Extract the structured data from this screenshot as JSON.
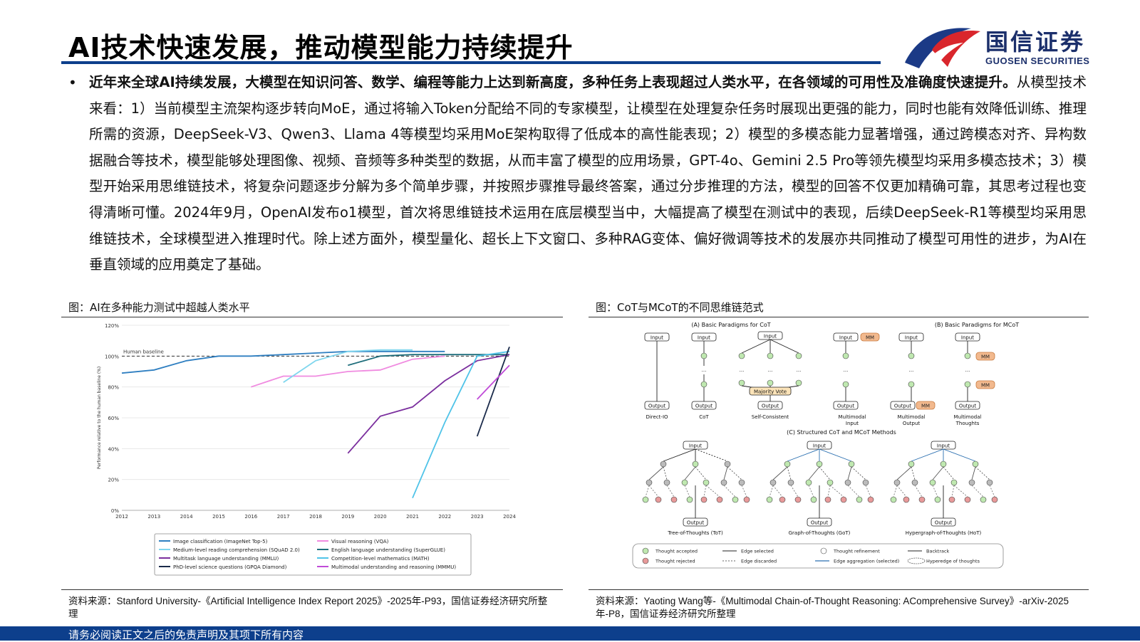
{
  "page": {
    "title": "AI技术快速发展，推动模型能力持续提升",
    "logo": {
      "cn": "国信证券",
      "en": "GUOSEN SECURITIES"
    },
    "bullet": "•",
    "paragraph_bold": "近年来全球AI持续发展，大模型在知识问答、数学、编程等能力上达到新高度，多种任务上表现超过人类水平，在各领域的可用性及准确度快速提升。",
    "paragraph_rest": "从模型技术来看：1）当前模型主流架构逐步转向MoE，通过将输入Token分配给不同的专家模型，让模型在处理复杂任务时展现出更强的能力，同时也能有效降低训练、推理所需的资源，DeepSeek-V3、Qwen3、Llama 4等模型均采用MoE架构取得了低成本的高性能表现；2）模型的多模态能力显著增强，通过跨模态对齐、异构数据融合等技术，模型能够处理图像、视频、音频等多种类型的数据，从而丰富了模型的应用场景，GPT-4o、Gemini 2.5 Pro等领先模型均采用多模态技术；3）模型开始采用思维链技术，将复杂问题逐步分解为多个简单步骤，并按照步骤推导最终答案，通过分步推理的方法，模型的回答不仅更加精确可靠，其思考过程也变得清晰可懂。2024年9月，OpenAI发布o1模型，首次将思维链技术运用在底层模型当中，大幅提高了模型在测试中的表现，后续DeepSeek-R1等模型均采用思维链技术，全球模型进入推理时代。除上述方面外，模型量化、超长上下文窗口、多种RAG变体、偏好微调等技术的发展亦共同推动了模型可用性的进步，为AI在垂直领域的应用奠定了基础。",
    "footer": "请务必阅读正文之后的免责声明及其项下所有内容"
  },
  "left_figure": {
    "caption": "图：AI在多种能力测试中超越人类水平",
    "source": "资料来源：Stanford University-《Artificial Intelligence Index Report 2025》-2025年-P93，国信证券经济研究所整理"
  },
  "right_figure": {
    "caption": "图：CoT与MCoT的不同思维链范式",
    "source": "资料来源：Yaoting Wang等-《Multimodal Chain-of-Thought Reasoning: AComprehensive Survey》-arXiv-2025年-P8，国信证券经济研究所整理",
    "section_a": "(A) Basic Paradigms for CoT",
    "section_b": "(B) Basic Paradigms for MCoT",
    "section_c": "(C) Structured CoT and MCoT Methods",
    "input": "Input",
    "output": "Output",
    "mm": "MM",
    "majority_vote": "Majority Vote",
    "a_labels": [
      "Direct-IO",
      "CoT",
      "Self-Consistent"
    ],
    "b_labels": [
      "Multimodal Input",
      "Multimodal Output",
      "Multimodal Thoughts"
    ],
    "c_labels": [
      "Tree-of-Thoughts (ToT)",
      "Graph-of-Thoughts (GoT)",
      "Hypergraph-of-Thoughts (HoT)"
    ],
    "legend": [
      "Thought accepted",
      "Thought rejected",
      "Edge selected",
      "Edge discarded",
      "Thought refinement",
      "Edge aggregation (selected)",
      "Backtrack",
      "Hyperedge of thoughts"
    ]
  },
  "chart_data": {
    "type": "line",
    "title": "",
    "xlabel": "",
    "ylabel": "Performance relative to the human baseline (%)",
    "x": [
      2012,
      2013,
      2014,
      2015,
      2016,
      2017,
      2018,
      2019,
      2020,
      2021,
      2022,
      2023,
      2024
    ],
    "ylim": [
      0,
      120
    ],
    "yticks": [
      "0%",
      "20%",
      "40%",
      "60%",
      "80%",
      "100%",
      "120%"
    ],
    "baseline": {
      "label": "Human baseline",
      "value": 100
    },
    "series": [
      {
        "name": "Image classification (ImageNet Top-5)",
        "color": "#2f7fc1",
        "points": [
          [
            2012,
            89
          ],
          [
            2013,
            91
          ],
          [
            2014,
            97
          ],
          [
            2015,
            100
          ],
          [
            2016,
            100
          ],
          [
            2017,
            101
          ],
          [
            2018,
            102
          ],
          [
            2019,
            103
          ],
          [
            2020,
            103
          ],
          [
            2021,
            103
          ],
          [
            2022,
            103
          ]
        ]
      },
      {
        "name": "Visual reasoning (VQA)",
        "color": "#f08be0",
        "points": [
          [
            2016,
            80
          ],
          [
            2017,
            87
          ],
          [
            2018,
            87
          ],
          [
            2019,
            90
          ],
          [
            2020,
            91
          ],
          [
            2021,
            98
          ],
          [
            2022,
            100
          ]
        ]
      },
      {
        "name": "Medium-level reading comprehension (SQuAD 2.0)",
        "color": "#7fd6ee",
        "points": [
          [
            2017,
            83
          ],
          [
            2018,
            97
          ],
          [
            2019,
            103
          ],
          [
            2020,
            104
          ],
          [
            2021,
            104
          ]
        ]
      },
      {
        "name": "English language understanding (SuperGLUE)",
        "color": "#1f6e7c",
        "points": [
          [
            2019,
            94
          ],
          [
            2020,
            100
          ],
          [
            2021,
            101
          ],
          [
            2022,
            101
          ],
          [
            2023,
            101
          ],
          [
            2024,
            101
          ]
        ]
      },
      {
        "name": "Multitask language understanding (MMLU)",
        "color": "#7b2f9e",
        "points": [
          [
            2019,
            37
          ],
          [
            2020,
            61
          ],
          [
            2021,
            67
          ],
          [
            2022,
            84
          ],
          [
            2023,
            97
          ],
          [
            2024,
            101
          ]
        ]
      },
      {
        "name": "Competition-level mathematics (MATH)",
        "color": "#4fc3e8",
        "points": [
          [
            2021,
            8
          ],
          [
            2022,
            57
          ],
          [
            2023,
            100
          ],
          [
            2024,
            103
          ]
        ]
      },
      {
        "name": "PhD-level science questions (GPQA Diamond)",
        "color": "#1a2a4a",
        "points": [
          [
            2023,
            48
          ],
          [
            2024,
            106
          ]
        ]
      },
      {
        "name": "Multimodal understanding and reasoning (MMMU)",
        "color": "#c04bd8",
        "points": [
          [
            2023,
            72
          ],
          [
            2024,
            94
          ]
        ]
      }
    ],
    "legend_position": "bottom"
  }
}
